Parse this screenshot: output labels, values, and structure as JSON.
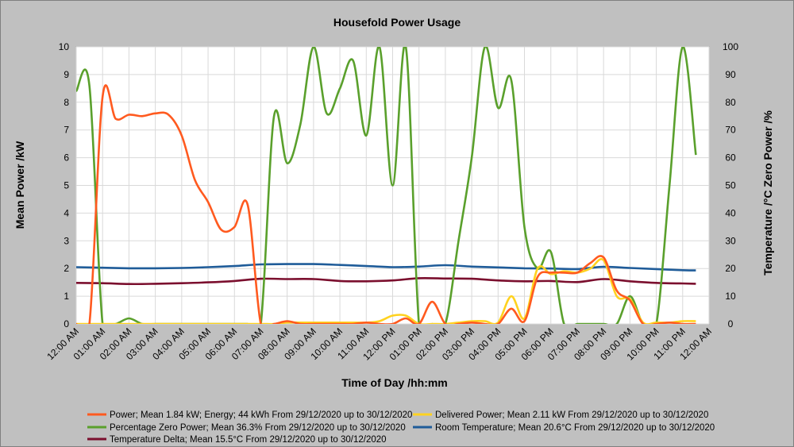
{
  "chart_data": {
    "type": "line",
    "title": "Housefold Power Usage",
    "xlabel": "Time of Day /hh:mm",
    "ylabel": "Mean Power /kW",
    "y2label": "Temperature /°C Zero Power /%",
    "ylim": [
      0,
      10
    ],
    "y2lim": [
      0,
      100
    ],
    "yticks": [
      "0",
      "1",
      "2",
      "3",
      "4",
      "5",
      "6",
      "7",
      "8",
      "9",
      "10"
    ],
    "y2ticks": [
      "0",
      "10",
      "20",
      "30",
      "40",
      "50",
      "60",
      "70",
      "80",
      "90",
      "100"
    ],
    "xlim": [
      0,
      24
    ],
    "xticks": [
      "12:00 AM",
      "01:00 AM",
      "02:00 AM",
      "03:00 AM",
      "04:00 AM",
      "05:00 AM",
      "06:00 AM",
      "07:00 AM",
      "08:00 AM",
      "09:00 AM",
      "10:00 AM",
      "11:00 AM",
      "12:00 PM",
      "01:00 PM",
      "02:00 PM",
      "03:00 PM",
      "04:00 PM",
      "05:00 PM",
      "06:00 PM",
      "07:00 PM",
      "08:00 PM",
      "09:00 PM",
      "10:00 PM",
      "11:00 PM",
      "12:00 AM"
    ],
    "grid": true,
    "legend_position": "bottom",
    "series": [
      {
        "name": "Power; Mean 1.84 kW; Energy; 44 kWh From 29/12/2020 up to 30/12/2020",
        "axis": "left",
        "color": "#ff5a1f",
        "x": [
          0.0,
          0.5,
          1.0,
          1.5,
          2.0,
          2.5,
          3.0,
          3.5,
          4.0,
          4.5,
          5.0,
          5.5,
          6.0,
          6.5,
          7.0,
          7.5,
          8.0,
          8.5,
          9.0,
          9.5,
          10.0,
          10.5,
          11.0,
          11.5,
          12.0,
          12.5,
          13.0,
          13.5,
          14.0,
          14.5,
          15.0,
          15.5,
          16.0,
          16.5,
          17.0,
          17.5,
          18.0,
          18.5,
          19.0,
          19.5,
          20.0,
          20.5,
          21.0,
          21.5,
          22.0,
          22.5,
          23.0,
          23.5
        ],
        "y": [
          0,
          0,
          8.2,
          7.4,
          7.55,
          7.5,
          7.6,
          7.55,
          6.8,
          5.2,
          4.4,
          3.4,
          3.5,
          4.3,
          0,
          0,
          0.1,
          0,
          0,
          0,
          0,
          0,
          0.05,
          0,
          0,
          0.2,
          0,
          0.8,
          0,
          0,
          0.05,
          0,
          0,
          0.55,
          0.1,
          1.7,
          1.85,
          1.85,
          1.85,
          2.2,
          2.4,
          1.2,
          0.85,
          0,
          0,
          0.05,
          0,
          0
        ]
      },
      {
        "name": "Delivered Power; Mean 2.11 kW From 29/12/2020 up to 30/12/2020",
        "axis": "left",
        "color": "#ffd21f",
        "x": [
          0.0,
          1.0,
          2.0,
          3.0,
          4.0,
          5.0,
          6.0,
          7.0,
          7.5,
          8.0,
          8.5,
          9.0,
          9.5,
          10.0,
          10.5,
          11.0,
          11.5,
          12.0,
          12.5,
          13.0,
          13.5,
          14.0,
          14.5,
          15.0,
          15.5,
          16.0,
          16.5,
          17.0,
          17.5,
          18.0,
          18.5,
          19.0,
          19.5,
          20.0,
          20.5,
          21.0,
          21.5,
          22.0,
          22.5,
          23.0,
          23.5
        ],
        "y": [
          0,
          0,
          0,
          0,
          0,
          0,
          0,
          0,
          0,
          0.05,
          0.05,
          0.05,
          0.05,
          0.05,
          0.05,
          0.05,
          0.1,
          0.3,
          0.3,
          0,
          0,
          0,
          0.05,
          0.1,
          0.1,
          0.05,
          1.0,
          0.2,
          2.0,
          1.8,
          1.9,
          1.85,
          2.0,
          2.3,
          1.0,
          0.9,
          0.05,
          0.05,
          0.05,
          0.1,
          0.1
        ]
      },
      {
        "name": "Percentage Zero Power; Mean 36.3% From 29/12/2020 up to 30/12/2020",
        "axis": "right",
        "color": "#5aa02c",
        "x": [
          0.0,
          0.5,
          1.0,
          1.5,
          2.0,
          2.5,
          3.0,
          3.5,
          4.0,
          4.5,
          5.0,
          5.5,
          6.0,
          6.5,
          7.0,
          7.5,
          8.0,
          8.5,
          9.0,
          9.5,
          10.0,
          10.5,
          11.0,
          11.5,
          12.0,
          12.5,
          13.0,
          13.5,
          14.0,
          14.5,
          15.0,
          15.5,
          16.0,
          16.5,
          17.0,
          17.5,
          18.0,
          18.5,
          19.0,
          19.5,
          20.0,
          20.5,
          21.0,
          21.5,
          22.0,
          22.5,
          23.0,
          23.5
        ],
        "y": [
          84,
          86,
          0,
          0,
          2,
          0,
          0,
          0,
          0,
          0,
          0,
          0,
          0,
          0,
          0,
          75,
          58,
          72,
          100,
          76,
          85,
          95,
          68,
          100,
          50,
          100,
          0,
          0,
          0,
          30,
          60,
          100,
          78,
          88,
          35,
          20,
          26,
          0,
          0,
          0,
          0,
          0,
          10,
          0,
          0,
          50,
          100,
          61
        ]
      },
      {
        "name": "Room Temperature; Mean 20.6°C From 29/12/2020 up to 30/12/2020",
        "axis": "right",
        "color": "#1f5c99",
        "x": [
          0,
          1,
          2,
          3,
          4,
          5,
          6,
          7,
          8,
          9,
          10,
          11,
          12,
          13,
          14,
          15,
          16,
          17,
          18,
          19,
          20,
          21,
          22,
          23,
          23.5
        ],
        "y": [
          20.5,
          20.3,
          20.1,
          20.1,
          20.2,
          20.5,
          20.9,
          21.5,
          21.6,
          21.6,
          21.3,
          20.9,
          20.5,
          20.7,
          21.2,
          20.7,
          20.4,
          20.1,
          20.0,
          19.8,
          20.6,
          20.2,
          19.8,
          19.4,
          19.3
        ]
      },
      {
        "name": "Temperature Delta; Mean 15.5°C From 29/12/2020 up to 30/12/2020",
        "axis": "right",
        "color": "#7b0f2e",
        "x": [
          0,
          1,
          2,
          3,
          4,
          5,
          6,
          7,
          8,
          9,
          10,
          11,
          12,
          13,
          14,
          15,
          16,
          17,
          18,
          19,
          20,
          21,
          22,
          23,
          23.5
        ],
        "y": [
          14.8,
          14.7,
          14.4,
          14.5,
          14.7,
          15.0,
          15.5,
          16.3,
          16.2,
          16.2,
          15.5,
          15.4,
          15.7,
          16.5,
          16.4,
          16.3,
          15.7,
          15.4,
          15.5,
          15.1,
          16.2,
          15.4,
          14.8,
          14.6,
          14.5
        ]
      }
    ]
  }
}
